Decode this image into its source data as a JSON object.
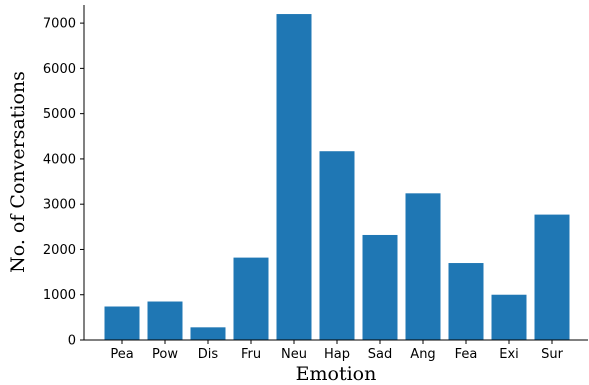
{
  "chart_data": {
    "type": "bar",
    "title": "",
    "xlabel": "Emotion",
    "ylabel": "No. of Conversations",
    "categories": [
      "Pea",
      "Pow",
      "Dis",
      "Fru",
      "Neu",
      "Hap",
      "Sad",
      "Ang",
      "Fea",
      "Exi",
      "Sur"
    ],
    "values": [
      740,
      850,
      280,
      1820,
      7200,
      4170,
      2320,
      3240,
      1700,
      1000,
      2770
    ],
    "ylim": [
      0,
      7400
    ],
    "yticks": [
      0,
      1000,
      2000,
      3000,
      4000,
      5000,
      6000,
      7000
    ],
    "bar_color": "#1f77b4",
    "grid": false,
    "legend": "none"
  }
}
